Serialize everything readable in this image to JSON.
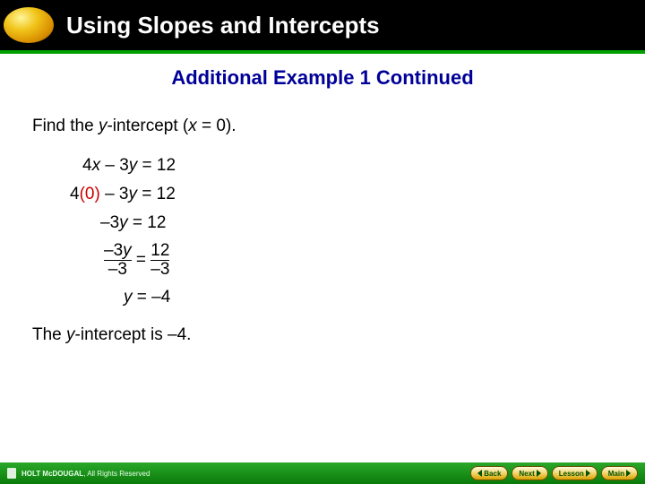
{
  "header": {
    "title": "Using Slopes and Intercepts",
    "background_color": "#000000",
    "title_color": "#ffffff",
    "accent_bar_color": "#00a000"
  },
  "subheader": {
    "text": "Additional Example 1 Continued",
    "color": "#000099"
  },
  "content": {
    "instruction_pre": "Find the ",
    "instruction_var": "y",
    "instruction_mid": "-intercept (",
    "instruction_var2": "x",
    "instruction_post": " = 0).",
    "line1_a": "4",
    "line1_b": "x",
    "line1_c": " – 3",
    "line1_d": "y",
    "line1_e": " = 12",
    "line2_a": "4",
    "line2_b": "(0)",
    "line2_c": " – 3",
    "line2_d": "y",
    "line2_e": " = 12",
    "line3_a": "–3",
    "line3_b": "y",
    "line3_c": " = 12",
    "line4_top_a": "–3",
    "line4_top_b": "y",
    "line4_bot_a": "–3",
    "line4_eq": " = ",
    "line4_top_c": "12",
    "line4_bot_c": "–3",
    "line5_a": "y",
    "line5_b": " = –4",
    "conclusion_a": "The ",
    "conclusion_b": "y",
    "conclusion_c": "-intercept is –4."
  },
  "footer": {
    "copyright_brand": "HOLT McDOUGAL",
    "copyright_text": ", All Rights Reserved",
    "back": "Back",
    "next": "Next",
    "lesson": "Lesson",
    "main": "Main"
  },
  "colors": {
    "red_highlight": "#cc0000",
    "footer_gradient_top": "#2aa82a",
    "footer_gradient_bottom": "#0a7a0a",
    "button_text": "#005000"
  }
}
